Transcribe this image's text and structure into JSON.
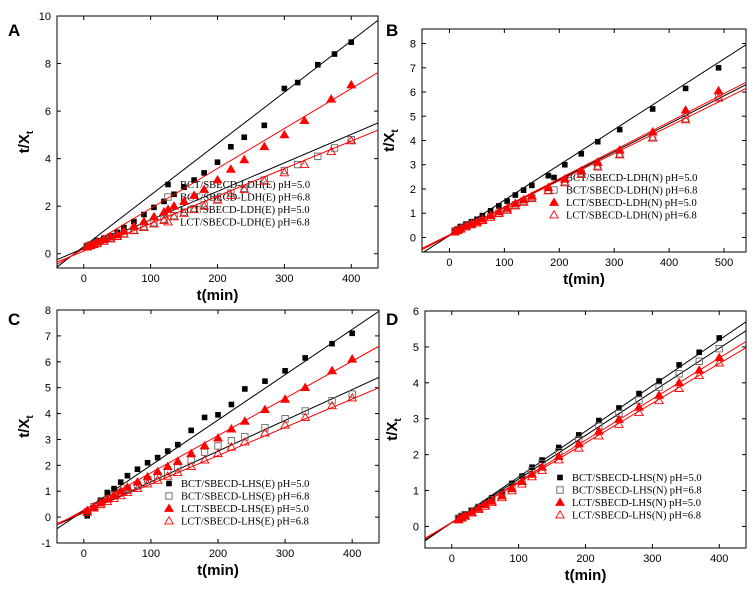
{
  "chart_data": [
    {
      "type": "scatter",
      "panel_label": "A",
      "xlabel": "t(min)",
      "ylabel": "t/X",
      "ylabel_sub": "t",
      "xlim": [
        -40,
        440
      ],
      "ylim": [
        -0.6,
        10
      ],
      "xticks": [
        0,
        100,
        200,
        300,
        400
      ],
      "yticks": [
        0,
        2,
        4,
        6,
        8,
        10
      ],
      "legend_position": "bottom-right",
      "series": [
        {
          "name": "BCT/SBECD-LDH(E) pH=5.0",
          "color": "#000000",
          "marker": "square-filled",
          "x": [
            5,
            10,
            15,
            20,
            30,
            40,
            50,
            60,
            75,
            90,
            105,
            120,
            135,
            150,
            165,
            180,
            200,
            220,
            240,
            270,
            300,
            320,
            350,
            375,
            400
          ],
          "y": [
            0.35,
            0.4,
            0.45,
            0.55,
            0.65,
            0.75,
            0.9,
            1.1,
            1.35,
            1.65,
            1.95,
            2.2,
            2.5,
            2.8,
            3.1,
            3.4,
            3.85,
            4.5,
            4.9,
            5.4,
            6.95,
            7.2,
            7.95,
            8.4,
            8.9
          ],
          "fit": [
            -40,
            -0.56,
            440,
            9.82
          ]
        },
        {
          "name": "BCT/SBECD-LDH(E) pH=6.8",
          "color": "#000000",
          "marker": "square-open",
          "x": [
            5,
            10,
            15,
            20,
            30,
            40,
            50,
            60,
            75,
            90,
            105,
            120,
            135,
            150,
            165,
            180,
            200,
            220,
            240,
            270,
            300,
            320,
            350,
            375,
            400
          ],
          "y": [
            0.3,
            0.35,
            0.4,
            0.45,
            0.55,
            0.65,
            0.75,
            0.85,
            1.0,
            1.15,
            1.3,
            1.45,
            1.6,
            1.75,
            1.9,
            2.05,
            2.3,
            2.55,
            2.75,
            3.1,
            3.5,
            3.75,
            4.1,
            4.45,
            4.8
          ],
          "fit": [
            -40,
            -0.25,
            440,
            5.5
          ]
        },
        {
          "name": "LCT/SBECD-LDH(E) pH=5.0",
          "color": "#ff0000",
          "marker": "triangle-filled",
          "x": [
            5,
            10,
            15,
            20,
            30,
            40,
            50,
            60,
            75,
            90,
            105,
            120,
            135,
            150,
            165,
            180,
            200,
            220,
            240,
            270,
            300,
            330,
            370,
            400
          ],
          "y": [
            0.3,
            0.35,
            0.4,
            0.5,
            0.6,
            0.7,
            0.8,
            0.95,
            1.15,
            1.35,
            1.55,
            1.75,
            2.0,
            2.2,
            2.45,
            2.7,
            3.1,
            3.55,
            3.95,
            4.5,
            5.0,
            5.6,
            6.5,
            7.1
          ],
          "fit": [
            -40,
            -0.45,
            440,
            7.62
          ]
        },
        {
          "name": "LCT/SBECD-LDH(E) pH=6.8",
          "color": "#ff0000",
          "marker": "triangle-open",
          "x": [
            5,
            10,
            15,
            20,
            30,
            40,
            50,
            60,
            75,
            90,
            105,
            120,
            135,
            150,
            165,
            180,
            200,
            220,
            240,
            270,
            300,
            330,
            370,
            400
          ],
          "y": [
            0.28,
            0.33,
            0.38,
            0.43,
            0.52,
            0.62,
            0.72,
            0.82,
            0.97,
            1.1,
            1.25,
            1.4,
            1.55,
            1.7,
            1.85,
            2.0,
            2.25,
            2.45,
            2.7,
            3.05,
            3.4,
            3.75,
            4.3,
            4.75
          ],
          "fit": [
            -40,
            -0.35,
            440,
            5.2
          ]
        }
      ]
    },
    {
      "type": "scatter",
      "panel_label": "B",
      "xlabel": "t(min)",
      "ylabel": "t/X",
      "ylabel_sub": "t",
      "xlim": [
        -50,
        540
      ],
      "ylim": [
        -0.6,
        8.6
      ],
      "xticks": [
        0,
        100,
        200,
        300,
        400,
        500
      ],
      "yticks": [
        0,
        1,
        2,
        3,
        4,
        5,
        6,
        7,
        8
      ],
      "legend_position": "bottom-right",
      "series": [
        {
          "name": "BCT/SBECD-LDH(N) pH=5.0",
          "color": "#000000",
          "marker": "square-filled",
          "x": [
            10,
            15,
            20,
            30,
            40,
            50,
            60,
            75,
            90,
            105,
            120,
            135,
            150,
            180,
            210,
            240,
            270,
            310,
            370,
            430,
            490
          ],
          "y": [
            0.3,
            0.35,
            0.45,
            0.55,
            0.65,
            0.75,
            0.9,
            1.1,
            1.3,
            1.5,
            1.75,
            1.95,
            2.15,
            2.55,
            3.0,
            3.45,
            3.95,
            4.45,
            5.3,
            6.15,
            7.0
          ],
          "fit": [
            -50,
            -0.65,
            540,
            7.95
          ]
        },
        {
          "name": "BCT/SBECD-LDH(N) pH=6.8",
          "color": "#000000",
          "marker": "square-open",
          "x": [
            10,
            15,
            20,
            30,
            40,
            50,
            60,
            75,
            90,
            105,
            120,
            135,
            150,
            180,
            210,
            240,
            270,
            310,
            370,
            430,
            490
          ],
          "y": [
            0.25,
            0.3,
            0.35,
            0.45,
            0.55,
            0.6,
            0.7,
            0.85,
            1.0,
            1.15,
            1.35,
            1.5,
            1.65,
            1.95,
            2.3,
            2.65,
            2.95,
            3.45,
            4.15,
            4.9,
            5.8
          ],
          "fit": [
            -50,
            -0.5,
            540,
            6.3
          ]
        },
        {
          "name": "LCT/SBECD-LDH(N) pH=5.0",
          "color": "#ff0000",
          "marker": "triangle-filled",
          "x": [
            10,
            15,
            20,
            30,
            40,
            50,
            60,
            75,
            90,
            105,
            120,
            135,
            150,
            180,
            210,
            240,
            270,
            310,
            370,
            430,
            490
          ],
          "y": [
            0.25,
            0.3,
            0.38,
            0.48,
            0.57,
            0.65,
            0.75,
            0.9,
            1.05,
            1.2,
            1.4,
            1.55,
            1.7,
            2.05,
            2.4,
            2.75,
            3.1,
            3.6,
            4.35,
            5.25,
            6.05
          ],
          "fit": [
            -50,
            -0.5,
            540,
            6.4
          ]
        },
        {
          "name": "LCT/SBECD-LDH(N) pH=6.8",
          "color": "#ff0000",
          "marker": "triangle-open",
          "x": [
            10,
            15,
            20,
            30,
            40,
            50,
            60,
            75,
            90,
            105,
            120,
            135,
            150,
            180,
            210,
            240,
            270,
            310,
            370,
            430,
            490
          ],
          "y": [
            0.22,
            0.28,
            0.34,
            0.43,
            0.52,
            0.6,
            0.7,
            0.83,
            0.98,
            1.12,
            1.3,
            1.45,
            1.6,
            1.92,
            2.25,
            2.6,
            2.9,
            3.4,
            4.1,
            4.85,
            5.75
          ],
          "fit": [
            -50,
            -0.45,
            540,
            6.15
          ]
        }
      ]
    },
    {
      "type": "scatter",
      "panel_label": "C",
      "xlabel": "t(min)",
      "ylabel": "t/X",
      "ylabel_sub": "t",
      "xlim": [
        -40,
        440
      ],
      "ylim": [
        -1,
        8
      ],
      "xticks": [
        0,
        100,
        200,
        300,
        400
      ],
      "yticks": [
        -1,
        0,
        1,
        2,
        3,
        4,
        5,
        6,
        7,
        8
      ],
      "legend_position": "bottom-right",
      "series": [
        {
          "name": "BCT/SBECD-LHS(E) pH=5.0",
          "color": "#000000",
          "marker": "square-filled",
          "x": [
            5,
            15,
            25,
            35,
            45,
            55,
            65,
            80,
            95,
            110,
            125,
            140,
            160,
            180,
            200,
            220,
            240,
            270,
            300,
            330,
            370,
            400
          ],
          "y": [
            0.05,
            0.35,
            0.65,
            0.95,
            1.1,
            1.35,
            1.6,
            1.85,
            2.1,
            2.3,
            2.55,
            2.8,
            3.35,
            3.85,
            3.95,
            4.35,
            4.95,
            5.25,
            5.65,
            6.15,
            6.7,
            7.1
          ],
          "fit": [
            -40,
            -0.45,
            440,
            7.95
          ]
        },
        {
          "name": "BCT/SBECD-LHS(E) pH=6.8",
          "color": "#000000",
          "marker": "square-open",
          "x": [
            5,
            15,
            25,
            35,
            45,
            55,
            65,
            80,
            95,
            110,
            125,
            140,
            160,
            180,
            200,
            220,
            240,
            270,
            300,
            330,
            370,
            400
          ],
          "y": [
            0.2,
            0.4,
            0.55,
            0.7,
            0.85,
            0.95,
            1.1,
            1.25,
            1.45,
            1.6,
            1.75,
            1.9,
            2.2,
            2.5,
            2.75,
            2.95,
            3.1,
            3.45,
            3.8,
            4.1,
            4.5,
            4.75
          ],
          "fit": [
            -40,
            -0.3,
            440,
            5.4
          ]
        },
        {
          "name": "LCT/SBECD-LHS(E) pH=5.0",
          "color": "#ff0000",
          "marker": "triangle-filled",
          "x": [
            5,
            15,
            25,
            35,
            45,
            55,
            65,
            80,
            95,
            110,
            125,
            140,
            160,
            180,
            200,
            220,
            240,
            270,
            300,
            330,
            370,
            400
          ],
          "y": [
            0.25,
            0.4,
            0.55,
            0.7,
            0.85,
            1.0,
            1.15,
            1.35,
            1.55,
            1.75,
            1.95,
            2.15,
            2.45,
            2.75,
            3.05,
            3.4,
            3.7,
            4.15,
            4.55,
            5.0,
            5.65,
            6.1
          ],
          "fit": [
            -40,
            -0.3,
            440,
            6.6
          ]
        },
        {
          "name": "LCT/SBECD-LHS(E) pH=6.8",
          "color": "#ff0000",
          "marker": "triangle-open",
          "x": [
            5,
            15,
            25,
            35,
            45,
            55,
            65,
            80,
            95,
            110,
            125,
            140,
            160,
            180,
            200,
            220,
            240,
            270,
            300,
            330,
            370,
            400
          ],
          "y": [
            0.18,
            0.35,
            0.48,
            0.6,
            0.72,
            0.82,
            0.95,
            1.1,
            1.28,
            1.42,
            1.58,
            1.72,
            1.95,
            2.2,
            2.45,
            2.7,
            2.9,
            3.25,
            3.55,
            3.85,
            4.3,
            4.6
          ],
          "fit": [
            -40,
            -0.25,
            440,
            5.0
          ]
        }
      ]
    },
    {
      "type": "scatter",
      "panel_label": "D",
      "xlabel": "t(min)",
      "ylabel": "t/X",
      "ylabel_sub": "t",
      "xlim": [
        -40,
        440
      ],
      "ylim": [
        -0.6,
        6
      ],
      "xticks": [
        0,
        100,
        200,
        300,
        400
      ],
      "yticks": [
        0,
        1,
        2,
        3,
        4,
        5,
        6
      ],
      "legend_position": "bottom-right",
      "series": [
        {
          "name": "BCT/SBECD-LHS(N) pH=5.0",
          "color": "#000000",
          "marker": "square-filled",
          "x": [
            10,
            15,
            20,
            30,
            40,
            50,
            60,
            75,
            90,
            105,
            120,
            135,
            160,
            190,
            220,
            250,
            280,
            310,
            340,
            370,
            400
          ],
          "y": [
            0.25,
            0.3,
            0.35,
            0.45,
            0.55,
            0.65,
            0.8,
            0.95,
            1.2,
            1.4,
            1.65,
            1.85,
            2.2,
            2.55,
            2.95,
            3.3,
            3.7,
            4.05,
            4.5,
            4.85,
            5.25
          ],
          "fit": [
            -40,
            -0.4,
            440,
            5.7
          ]
        },
        {
          "name": "BCT/SBECD-LHS(N) pH=6.8",
          "color": "#000000",
          "marker": "square-open",
          "x": [
            10,
            15,
            20,
            30,
            40,
            50,
            60,
            75,
            90,
            105,
            120,
            135,
            160,
            190,
            220,
            250,
            280,
            310,
            340,
            370,
            400
          ],
          "y": [
            0.22,
            0.28,
            0.33,
            0.43,
            0.53,
            0.62,
            0.75,
            0.9,
            1.12,
            1.32,
            1.55,
            1.75,
            2.08,
            2.42,
            2.8,
            3.15,
            3.52,
            3.88,
            4.25,
            4.6,
            4.95
          ],
          "fit": [
            -40,
            -0.38,
            440,
            5.45
          ]
        },
        {
          "name": "LCT/SBECD-LHS(N) pH=5.0",
          "color": "#ff0000",
          "marker": "triangle-filled",
          "x": [
            10,
            15,
            20,
            30,
            40,
            50,
            60,
            75,
            90,
            105,
            120,
            135,
            160,
            190,
            220,
            250,
            280,
            310,
            340,
            370,
            400
          ],
          "y": [
            0.2,
            0.25,
            0.3,
            0.4,
            0.5,
            0.6,
            0.7,
            0.85,
            1.05,
            1.25,
            1.45,
            1.65,
            1.95,
            2.3,
            2.65,
            2.98,
            3.32,
            3.65,
            4.0,
            4.35,
            4.7
          ],
          "fit": [
            -40,
            -0.35,
            440,
            5.15
          ]
        },
        {
          "name": "LCT/SBECD-LHS(N) pH=6.8",
          "color": "#ff0000",
          "marker": "triangle-open",
          "x": [
            10,
            15,
            20,
            30,
            40,
            50,
            60,
            75,
            90,
            105,
            120,
            135,
            160,
            190,
            220,
            250,
            280,
            310,
            340,
            370,
            400
          ],
          "y": [
            0.18,
            0.23,
            0.28,
            0.37,
            0.47,
            0.56,
            0.66,
            0.8,
            0.99,
            1.18,
            1.38,
            1.56,
            1.85,
            2.18,
            2.52,
            2.84,
            3.17,
            3.5,
            3.84,
            4.2,
            4.55
          ],
          "fit": [
            -40,
            -0.33,
            440,
            4.98
          ]
        }
      ]
    }
  ]
}
